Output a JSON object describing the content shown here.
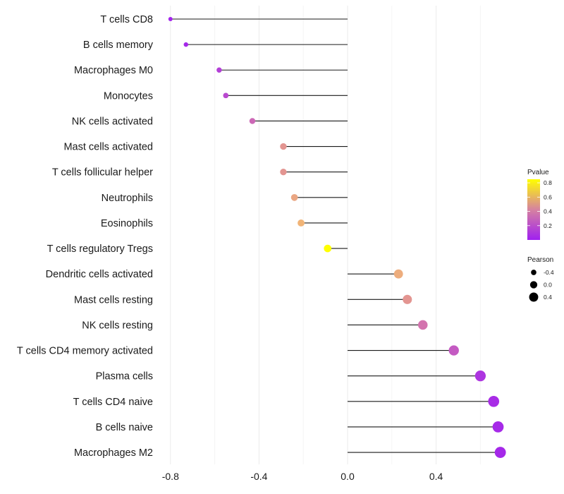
{
  "chart_data": {
    "type": "lollipop",
    "categories": [
      "T cells CD8",
      "B cells memory",
      "Macrophages M0",
      "Monocytes",
      "NK cells activated",
      "Mast cells activated",
      "T cells follicular helper",
      "Neutrophils",
      "Eosinophils",
      "T cells regulatory  Tregs",
      "Dendritic cells activated",
      "Mast cells resting",
      "NK cells resting",
      "T cells CD4 memory activated",
      "Plasma cells",
      "T cells CD4 naive",
      "B cells naive",
      "Macrophages M2"
    ],
    "pearson": [
      -0.8,
      -0.73,
      -0.58,
      -0.55,
      -0.43,
      -0.29,
      -0.29,
      -0.24,
      -0.21,
      -0.09,
      0.23,
      0.27,
      0.34,
      0.48,
      0.6,
      0.66,
      0.68,
      0.69
    ],
    "pvalue": [
      0.02,
      0.04,
      0.15,
      0.2,
      0.35,
      0.55,
      0.55,
      0.62,
      0.68,
      0.9,
      0.65,
      0.55,
      0.4,
      0.28,
      0.1,
      0.06,
      0.05,
      0.04
    ],
    "xlim": [
      -0.85,
      0.85
    ],
    "xticks": [
      -0.8,
      -0.4,
      0.0,
      0.4
    ],
    "xtick_labels": [
      "-0.8",
      "-0.4",
      "0.0",
      "0.4"
    ],
    "title": "",
    "xlabel": "",
    "ylabel": "",
    "legend": {
      "color_title": "Pvalue",
      "color_ticks": [
        0.2,
        0.4,
        0.6,
        0.8
      ],
      "color_tick_labels": [
        "0.2",
        "0.4",
        "0.6",
        "0.8"
      ],
      "color_range": [
        0.0,
        0.85
      ],
      "color_low": "#a020f0",
      "color_high": "#ffff00",
      "size_title": "Pearson",
      "size_values": [
        -0.4,
        0.0,
        0.4
      ],
      "size_labels": [
        "-0.4",
        "0.0",
        "0.4"
      ]
    }
  }
}
